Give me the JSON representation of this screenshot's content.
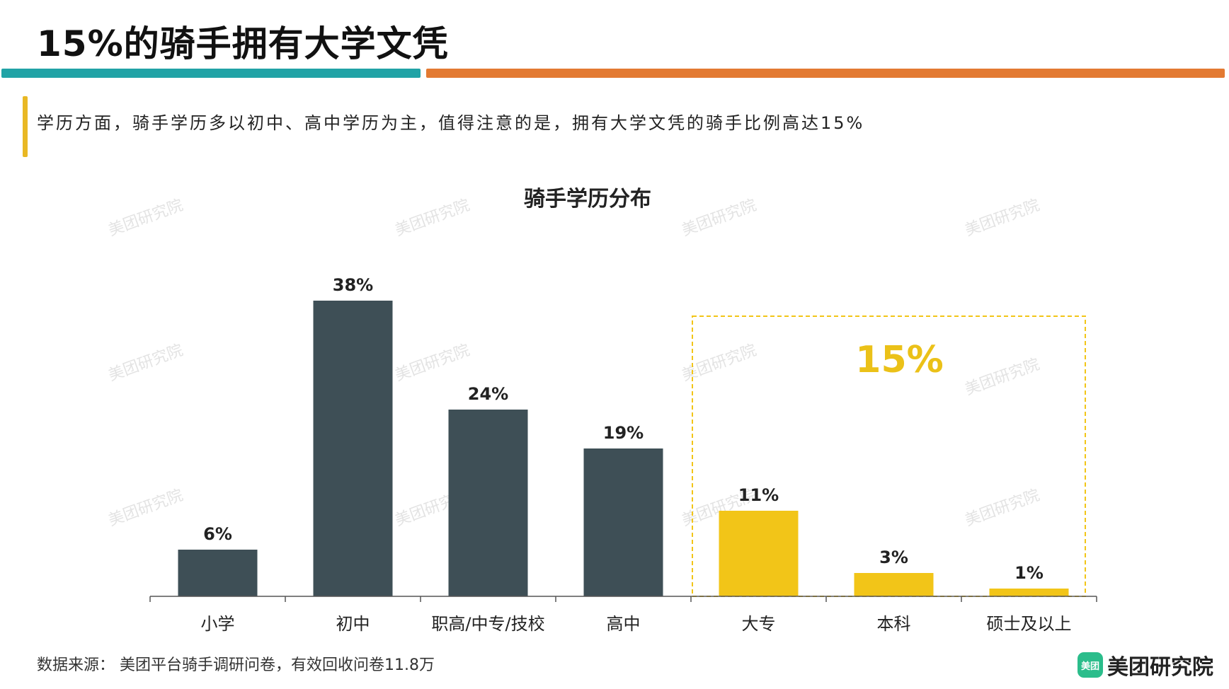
{
  "title": "15%的骑手拥有大学文凭",
  "subtitle": "学历方面，骑手学历多以初中、高中学历为主，值得注意的是，拥有大学文凭的骑手比例高达15%",
  "watermark": "美团研究院",
  "footer": {
    "source": "数据来源： 美团平台骑手调研问卷，有效回收问卷11.8万",
    "brand_icon": "美团",
    "brand_name": "美团研究院"
  },
  "colors": {
    "teal": "#21a3a6",
    "orange": "#e37a32",
    "dark_bar": "#3e4f56",
    "highlight_bar": "#f2c518",
    "highlight_text": "#ebc118"
  },
  "chart_data": {
    "type": "bar",
    "title": "骑手学历分布",
    "categories": [
      "小学",
      "初中",
      "职高/中专/技校",
      "高中",
      "大专",
      "本科",
      "硕士及以上"
    ],
    "values": [
      6,
      38,
      24,
      19,
      11,
      3,
      1
    ],
    "labels": [
      "6%",
      "38%",
      "24%",
      "19%",
      "11%",
      "3%",
      "1%"
    ],
    "highlight": {
      "categories": [
        "大专",
        "本科",
        "硕士及以上"
      ],
      "label": "15%"
    },
    "xlabel": "",
    "ylabel": "",
    "ylim": [
      0,
      40
    ]
  }
}
